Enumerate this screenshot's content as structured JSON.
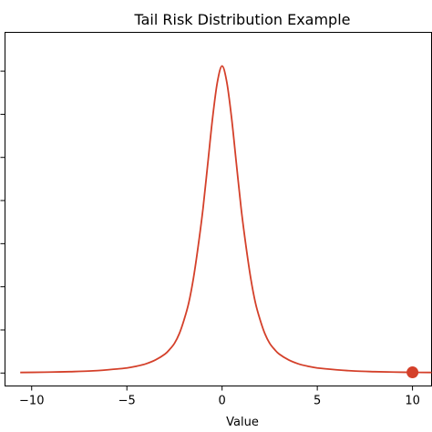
{
  "chart_data": {
    "type": "line",
    "title": "Tail Risk Distribution Example",
    "xlabel": "Value",
    "ylabel": "",
    "xlim": [
      -11.4,
      11
    ],
    "ylim": [
      -0.03,
      0.79
    ],
    "x_ticks": [
      -10,
      -5,
      0,
      5,
      10
    ],
    "x_tick_labels": [
      "−10",
      "−5",
      "0",
      "5",
      "10"
    ],
    "y_ticks": [
      0,
      0.1,
      0.2,
      0.3,
      0.4,
      0.5,
      0.6,
      0.7
    ],
    "y_tick_labels_visible": false,
    "grid": false,
    "series": [
      {
        "color": "#d4402a",
        "x": [
          -10.6,
          -10,
          -9,
          -8,
          -7,
          -6,
          -5,
          -4.5,
          -4,
          -3.5,
          -3,
          -2.75,
          -2.5,
          -2.25,
          -2,
          -1.75,
          -1.5,
          -1.25,
          -1,
          -0.75,
          -0.5,
          -0.25,
          0,
          0.25,
          0.5,
          0.75,
          1,
          1.25,
          1.5,
          1.75,
          2,
          2.25,
          2.5,
          2.75,
          3,
          3.5,
          4,
          4.5,
          5,
          6,
          7,
          8,
          9,
          10,
          11
        ],
        "y": [
          0.0013,
          0.0016,
          0.0022,
          0.0032,
          0.0046,
          0.0076,
          0.0118,
          0.0158,
          0.0214,
          0.0303,
          0.044,
          0.055,
          0.069,
          0.091,
          0.123,
          0.163,
          0.221,
          0.296,
          0.382,
          0.486,
          0.591,
          0.674,
          0.712,
          0.674,
          0.591,
          0.486,
          0.382,
          0.296,
          0.221,
          0.163,
          0.123,
          0.091,
          0.069,
          0.055,
          0.044,
          0.0303,
          0.0214,
          0.0158,
          0.0118,
          0.0076,
          0.0046,
          0.0032,
          0.0022,
          0.0016,
          0.0013
        ]
      }
    ],
    "highlight_point": {
      "x": 10,
      "y": 0.0016,
      "color": "#d4402a"
    }
  }
}
